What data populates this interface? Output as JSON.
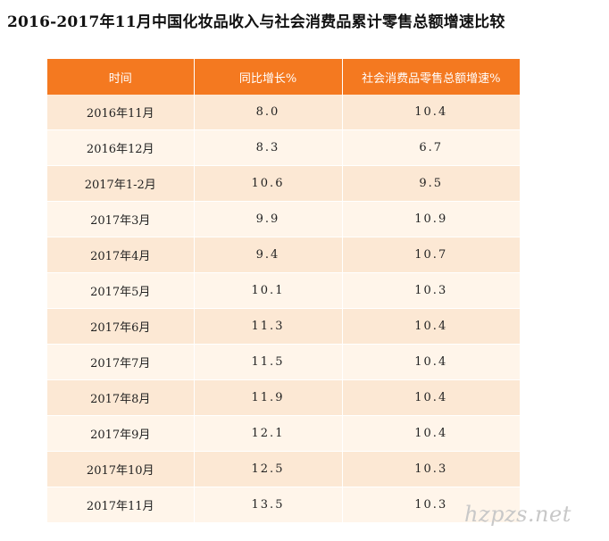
{
  "title": "2016-2017年11月中国化妆品收入与社会消费品累计零售总额增速比较",
  "table": {
    "headers": [
      "时间",
      "同比增长%",
      "社会消费品零售总额增速%"
    ],
    "rows": [
      [
        "2016年11月",
        "8.0",
        "10.4"
      ],
      [
        "2016年12月",
        "8.3",
        "6.7"
      ],
      [
        "2017年1-2月",
        "10.6",
        "9.5"
      ],
      [
        "2017年3月",
        "9.9",
        "10.9"
      ],
      [
        "2017年4月",
        "9.4",
        "10.7"
      ],
      [
        "2017年5月",
        "10.1",
        "10.3"
      ],
      [
        "2017年6月",
        "11.3",
        "10.4"
      ],
      [
        "2017年7月",
        "11.5",
        "10.4"
      ],
      [
        "2017年8月",
        "11.9",
        "10.4"
      ],
      [
        "2017年9月",
        "12.1",
        "10.4"
      ],
      [
        "2017年10月",
        "12.5",
        "10.3"
      ],
      [
        "2017年11月",
        "13.5",
        "10.3"
      ]
    ]
  },
  "watermark": "hzpzs.net",
  "colors": {
    "header_bg": "#f47920",
    "row_odd": "#fce8d4",
    "row_even": "#fff5ea"
  }
}
